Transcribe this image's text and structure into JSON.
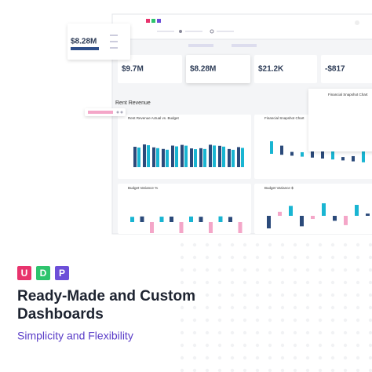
{
  "logo": [
    "U",
    "D",
    "P"
  ],
  "floating_card": {
    "value": "$8.28M"
  },
  "kpis": [
    "$9.7M",
    "$8.28M",
    "$21.2K",
    "-$817"
  ],
  "section_title": "Rent Revenue",
  "panels": [
    "Rent Revenue Actual vs. Budget",
    "Financial Snapshot Chart",
    "Budget Variance %",
    "Budget Variance $"
  ],
  "overlay_title": "Financial Snapshot Chart",
  "headline": [
    "Ready-Made and Custom",
    "Dashboards"
  ],
  "tagline": "Simplicity and Flexibility"
}
